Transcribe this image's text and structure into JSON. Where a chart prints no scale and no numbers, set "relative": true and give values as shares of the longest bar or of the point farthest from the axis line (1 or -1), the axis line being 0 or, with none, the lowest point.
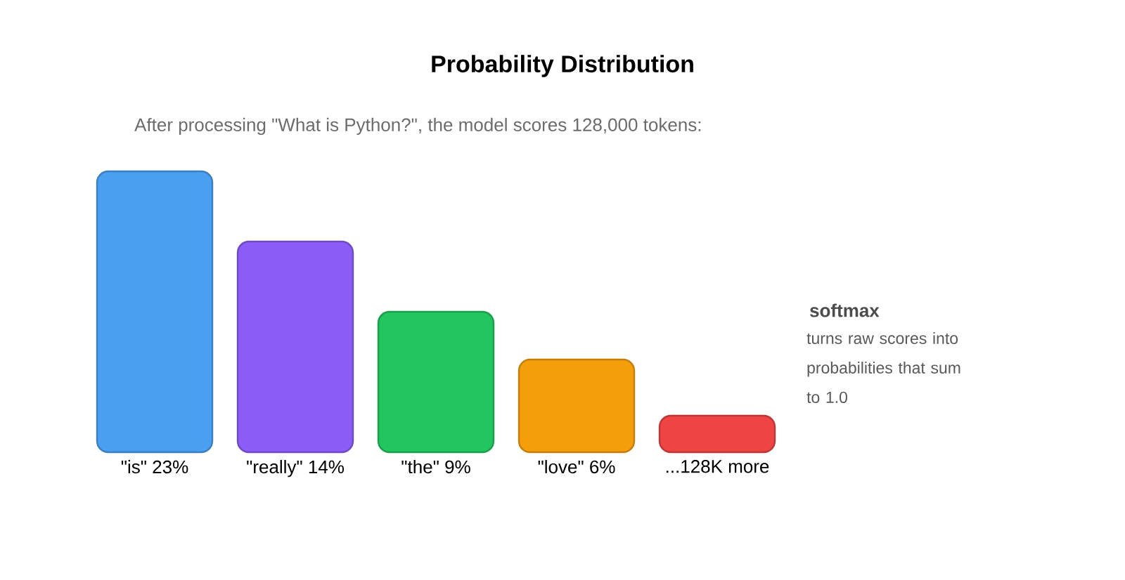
{
  "chart_data": {
    "type": "bar",
    "title": "Probability Distribution",
    "subtitle": "After processing \"What is Python?\", the model scores 128,000 tokens:",
    "categories": [
      "\"is\" 23%",
      "\"really\" 14%",
      "\"the\" 9%",
      "\"love\" 6%",
      "...128K more"
    ],
    "values": [
      1,
      0.75,
      0.5,
      0.33,
      0.13
    ],
    "colors": [
      "#4a9ff0",
      "#8b5cf6",
      "#22c55e",
      "#f59e0b",
      "#ef4444"
    ],
    "relative": true,
    "annotations": [
      "softmax",
      "turns raw scores into probabilities that sum to 1.0"
    ]
  }
}
